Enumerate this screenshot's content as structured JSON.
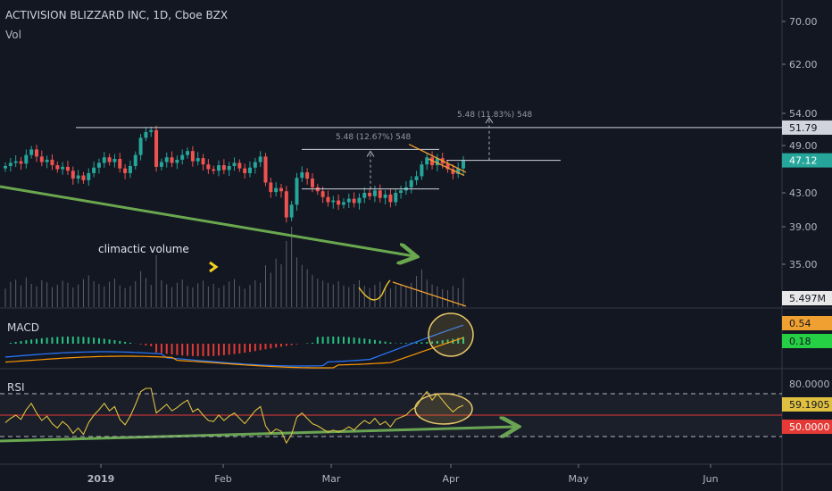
{
  "header": {
    "title": "ACTIVISION BLIZZARD INC, 1D, Cboe BZX",
    "subtitle": "Vol"
  },
  "colors": {
    "up": "#26a69a",
    "down": "#ef5350",
    "background": "#131722",
    "grid": "#2a2e39",
    "text": "#d1d4dc",
    "green_arrow": "#6aa84f",
    "orange": "#f0a030"
  },
  "chart_data": [
    {
      "type": "candlestick",
      "name": "price",
      "y_axis_ticks": [
        "70.00",
        "62.00",
        "54.00",
        "49.00",
        "43.00",
        "39.00",
        "35.00"
      ],
      "x_axis_ticks": [
        "2019",
        "Feb",
        "Mar",
        "Apr",
        "May",
        "Jun"
      ],
      "price_badges": [
        {
          "label": "51.79",
          "value": 51.79
        },
        {
          "label": "47.12",
          "value": 47.12,
          "color": "#26a69a"
        },
        {
          "label": "5.497M",
          "value": 5.497
        }
      ],
      "annotations": [
        "climactic volume",
        "5.48 (12.67%) 548",
        "5.48 (11.83%) 548"
      ],
      "closes": [
        46.4,
        46.8,
        47.0,
        46.7,
        47.8,
        48.5,
        47.6,
        46.9,
        47.2,
        46.5,
        46.0,
        46.3,
        45.8,
        44.8,
        45.2,
        44.6,
        45.5,
        46.2,
        46.8,
        47.5,
        46.9,
        47.3,
        46.1,
        45.5,
        46.4,
        47.8,
        50.2,
        51.1,
        51.4,
        46.3,
        46.9,
        47.5,
        46.8,
        47.2,
        47.8,
        48.3,
        47.0,
        47.4,
        46.6,
        46.0,
        45.8,
        46.5,
        45.9,
        46.4,
        46.8,
        46.1,
        45.5,
        46.2,
        46.9,
        47.6,
        44.3,
        43.1,
        43.6,
        43.2,
        40.1,
        41.6,
        44.9,
        45.6,
        44.8,
        43.7,
        43.2,
        42.5,
        41.9,
        42.1,
        41.6,
        41.9,
        42.3,
        41.8,
        42.4,
        43.0,
        42.6,
        43.3,
        42.4,
        42.8,
        41.9,
        43.0,
        43.3,
        43.7,
        44.6,
        45.1,
        46.6,
        47.5,
        46.5,
        47.4,
        46.7,
        46.0,
        45.4,
        46.1,
        47.12
      ],
      "volume_m": [
        3.5,
        4.8,
        5.2,
        4.1,
        5.6,
        4.4,
        3.9,
        5.1,
        4.7,
        3.8,
        4.2,
        5.0,
        4.6,
        3.7,
        4.3,
        5.3,
        6.0,
        4.9,
        4.4,
        3.9,
        4.8,
        5.4,
        4.1,
        3.6,
        4.0,
        4.9,
        6.8,
        5.5,
        4.2,
        9.8,
        5.1,
        4.3,
        3.8,
        4.6,
        5.2,
        4.0,
        3.7,
        4.5,
        5.0,
        3.9,
        4.4,
        3.6,
        4.1,
        4.8,
        5.3,
        4.0,
        3.5,
        4.2,
        5.1,
        4.6,
        7.9,
        6.5,
        9.2,
        8.1,
        12.5,
        15.2,
        9.4,
        8.0,
        7.2,
        6.1,
        5.4,
        5.0,
        4.6,
        4.3,
        4.9,
        4.1,
        3.8,
        4.4,
        5.1,
        4.0,
        3.6,
        4.2,
        4.8,
        3.9,
        3.5,
        4.1,
        4.4,
        3.8,
        4.6,
        5.9,
        7.1,
        5.2,
        4.3,
        3.9,
        3.4,
        3.2,
        4.0,
        3.6,
        5.497
      ]
    },
    {
      "type": "line",
      "name": "MACD",
      "title": "MACD",
      "badges": [
        {
          "label": "0.54",
          "color": "#f0a030"
        },
        {
          "label": "0.18",
          "color": "#26d045"
        }
      ]
    },
    {
      "type": "line",
      "name": "RSI",
      "title": "RSI",
      "y_axis_ticks": [
        "80.0000"
      ],
      "badges": [
        {
          "label": "59.1905",
          "color": "#e0c040"
        },
        {
          "label": "50.0000",
          "color": "#e53935"
        }
      ],
      "levels": [
        70,
        50,
        30
      ],
      "values": [
        43,
        47,
        50,
        46,
        55,
        61,
        52,
        45,
        49,
        42,
        38,
        44,
        40,
        33,
        38,
        32,
        43,
        50,
        55,
        61,
        54,
        58,
        46,
        41,
        49,
        60,
        72,
        75,
        75,
        52,
        56,
        60,
        54,
        57,
        61,
        64,
        53,
        56,
        50,
        45,
        44,
        50,
        45,
        49,
        52,
        47,
        42,
        48,
        54,
        58,
        40,
        33,
        37,
        35,
        24,
        32,
        48,
        52,
        47,
        42,
        40,
        37,
        34,
        36,
        34,
        36,
        39,
        36,
        41,
        45,
        42,
        47,
        41,
        44,
        39,
        46,
        48,
        50,
        55,
        58,
        66,
        72,
        64,
        70,
        64,
        58,
        53,
        57,
        59.19
      ]
    }
  ]
}
